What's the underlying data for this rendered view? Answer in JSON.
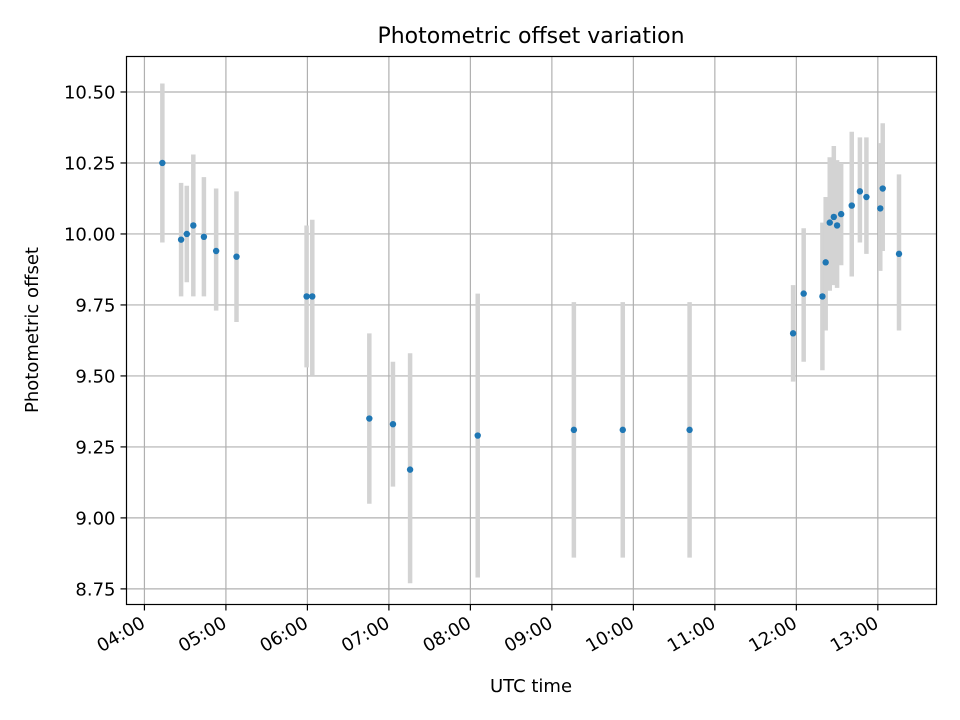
{
  "colors": {
    "point": "#1f77b4",
    "errorbar": "#d3d3d3"
  },
  "chart_data": {
    "type": "scatter",
    "title": "Photometric offset variation",
    "xlabel": "UTC time",
    "ylabel": "Photometric offset",
    "x_unit": "hours UTC",
    "xlim": [
      3.78,
      13.72
    ],
    "ylim": [
      8.695,
      10.625
    ],
    "x_ticks": [
      {
        "value": 4,
        "label": "04:00"
      },
      {
        "value": 5,
        "label": "05:00"
      },
      {
        "value": 6,
        "label": "06:00"
      },
      {
        "value": 7,
        "label": "07:00"
      },
      {
        "value": 8,
        "label": "08:00"
      },
      {
        "value": 9,
        "label": "09:00"
      },
      {
        "value": 10,
        "label": "10:00"
      },
      {
        "value": 11,
        "label": "11:00"
      },
      {
        "value": 12,
        "label": "12:00"
      },
      {
        "value": 13,
        "label": "13:00"
      }
    ],
    "y_ticks": [
      {
        "value": 8.75,
        "label": "8.75"
      },
      {
        "value": 9.0,
        "label": "9.00"
      },
      {
        "value": 9.25,
        "label": "9.25"
      },
      {
        "value": 9.5,
        "label": "9.50"
      },
      {
        "value": 9.75,
        "label": "9.75"
      },
      {
        "value": 10.0,
        "label": "10.00"
      },
      {
        "value": 10.25,
        "label": "10.25"
      },
      {
        "value": 10.5,
        "label": "10.50"
      }
    ],
    "grid": true,
    "legend": "none",
    "points": [
      {
        "x": 4.22,
        "y": 10.25,
        "ylo": 9.97,
        "yhi": 10.53
      },
      {
        "x": 4.45,
        "y": 9.98,
        "ylo": 9.78,
        "yhi": 10.18
      },
      {
        "x": 4.52,
        "y": 10.0,
        "ylo": 9.83,
        "yhi": 10.17
      },
      {
        "x": 4.6,
        "y": 10.03,
        "ylo": 9.78,
        "yhi": 10.28
      },
      {
        "x": 4.73,
        "y": 9.99,
        "ylo": 9.78,
        "yhi": 10.2
      },
      {
        "x": 4.88,
        "y": 9.94,
        "ylo": 9.73,
        "yhi": 10.16
      },
      {
        "x": 5.13,
        "y": 9.92,
        "ylo": 9.69,
        "yhi": 10.15
      },
      {
        "x": 5.99,
        "y": 9.78,
        "ylo": 9.53,
        "yhi": 10.03
      },
      {
        "x": 6.06,
        "y": 9.78,
        "ylo": 9.5,
        "yhi": 10.05
      },
      {
        "x": 6.76,
        "y": 9.35,
        "ylo": 9.05,
        "yhi": 9.65
      },
      {
        "x": 7.05,
        "y": 9.33,
        "ylo": 9.11,
        "yhi": 9.55
      },
      {
        "x": 7.26,
        "y": 9.17,
        "ylo": 8.77,
        "yhi": 9.58
      },
      {
        "x": 8.09,
        "y": 9.29,
        "ylo": 8.79,
        "yhi": 9.79
      },
      {
        "x": 9.27,
        "y": 9.31,
        "ylo": 8.86,
        "yhi": 9.76
      },
      {
        "x": 9.87,
        "y": 9.31,
        "ylo": 8.86,
        "yhi": 9.76
      },
      {
        "x": 10.69,
        "y": 9.31,
        "ylo": 8.86,
        "yhi": 9.76
      },
      {
        "x": 11.96,
        "y": 9.65,
        "ylo": 9.48,
        "yhi": 9.82
      },
      {
        "x": 12.09,
        "y": 9.79,
        "ylo": 9.55,
        "yhi": 10.02
      },
      {
        "x": 12.32,
        "y": 9.78,
        "ylo": 9.52,
        "yhi": 10.04
      },
      {
        "x": 12.36,
        "y": 9.9,
        "ylo": 9.66,
        "yhi": 10.13
      },
      {
        "x": 12.41,
        "y": 10.04,
        "ylo": 9.8,
        "yhi": 10.27
      },
      {
        "x": 12.46,
        "y": 10.06,
        "ylo": 9.82,
        "yhi": 10.31
      },
      {
        "x": 12.5,
        "y": 10.03,
        "ylo": 9.81,
        "yhi": 10.26
      },
      {
        "x": 12.55,
        "y": 10.07,
        "ylo": 9.89,
        "yhi": 10.25
      },
      {
        "x": 12.68,
        "y": 10.1,
        "ylo": 9.85,
        "yhi": 10.36
      },
      {
        "x": 12.78,
        "y": 10.15,
        "ylo": 9.97,
        "yhi": 10.34
      },
      {
        "x": 12.86,
        "y": 10.13,
        "ylo": 9.93,
        "yhi": 10.34
      },
      {
        "x": 13.03,
        "y": 10.09,
        "ylo": 9.87,
        "yhi": 10.32
      },
      {
        "x": 13.06,
        "y": 10.16,
        "ylo": 9.94,
        "yhi": 10.39
      },
      {
        "x": 13.26,
        "y": 9.93,
        "ylo": 9.66,
        "yhi": 10.21
      }
    ]
  }
}
